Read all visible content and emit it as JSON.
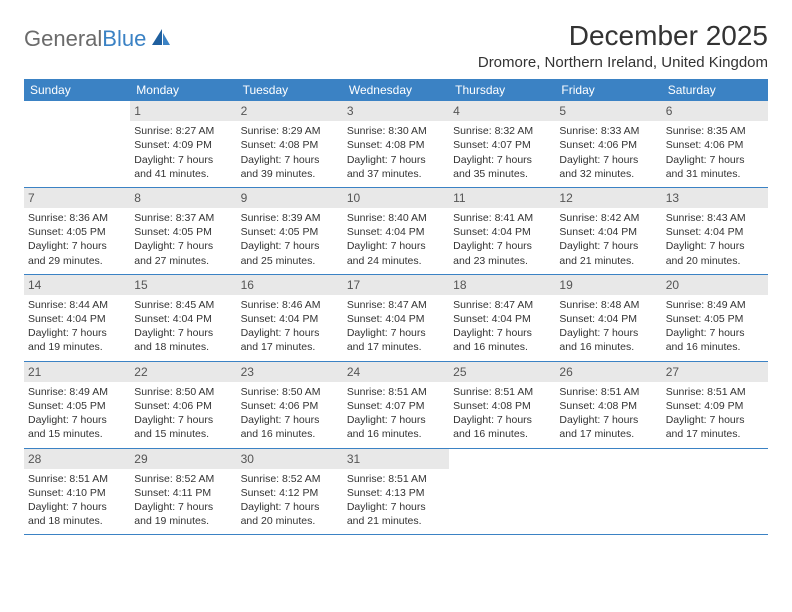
{
  "brand": {
    "part1": "General",
    "part2": "Blue"
  },
  "title": "December 2025",
  "location": "Dromore, Northern Ireland, United Kingdom",
  "day_headers": [
    "Sunday",
    "Monday",
    "Tuesday",
    "Wednesday",
    "Thursday",
    "Friday",
    "Saturday"
  ],
  "colors": {
    "header_bg": "#3b82c4",
    "header_text": "#ffffff",
    "daynum_bg": "#e8e8e8",
    "body_text": "#333333",
    "rule": "#3b82c4"
  },
  "typography": {
    "title_fontsize": 28,
    "location_fontsize": 15,
    "dayheader_fontsize": 12,
    "cell_fontsize": 10.5
  },
  "weeks": [
    [
      {
        "n": "",
        "sunrise": "",
        "sunset": "",
        "daylight": ""
      },
      {
        "n": "1",
        "sunrise": "Sunrise: 8:27 AM",
        "sunset": "Sunset: 4:09 PM",
        "daylight": "Daylight: 7 hours and 41 minutes."
      },
      {
        "n": "2",
        "sunrise": "Sunrise: 8:29 AM",
        "sunset": "Sunset: 4:08 PM",
        "daylight": "Daylight: 7 hours and 39 minutes."
      },
      {
        "n": "3",
        "sunrise": "Sunrise: 8:30 AM",
        "sunset": "Sunset: 4:08 PM",
        "daylight": "Daylight: 7 hours and 37 minutes."
      },
      {
        "n": "4",
        "sunrise": "Sunrise: 8:32 AM",
        "sunset": "Sunset: 4:07 PM",
        "daylight": "Daylight: 7 hours and 35 minutes."
      },
      {
        "n": "5",
        "sunrise": "Sunrise: 8:33 AM",
        "sunset": "Sunset: 4:06 PM",
        "daylight": "Daylight: 7 hours and 32 minutes."
      },
      {
        "n": "6",
        "sunrise": "Sunrise: 8:35 AM",
        "sunset": "Sunset: 4:06 PM",
        "daylight": "Daylight: 7 hours and 31 minutes."
      }
    ],
    [
      {
        "n": "7",
        "sunrise": "Sunrise: 8:36 AM",
        "sunset": "Sunset: 4:05 PM",
        "daylight": "Daylight: 7 hours and 29 minutes."
      },
      {
        "n": "8",
        "sunrise": "Sunrise: 8:37 AM",
        "sunset": "Sunset: 4:05 PM",
        "daylight": "Daylight: 7 hours and 27 minutes."
      },
      {
        "n": "9",
        "sunrise": "Sunrise: 8:39 AM",
        "sunset": "Sunset: 4:05 PM",
        "daylight": "Daylight: 7 hours and 25 minutes."
      },
      {
        "n": "10",
        "sunrise": "Sunrise: 8:40 AM",
        "sunset": "Sunset: 4:04 PM",
        "daylight": "Daylight: 7 hours and 24 minutes."
      },
      {
        "n": "11",
        "sunrise": "Sunrise: 8:41 AM",
        "sunset": "Sunset: 4:04 PM",
        "daylight": "Daylight: 7 hours and 23 minutes."
      },
      {
        "n": "12",
        "sunrise": "Sunrise: 8:42 AM",
        "sunset": "Sunset: 4:04 PM",
        "daylight": "Daylight: 7 hours and 21 minutes."
      },
      {
        "n": "13",
        "sunrise": "Sunrise: 8:43 AM",
        "sunset": "Sunset: 4:04 PM",
        "daylight": "Daylight: 7 hours and 20 minutes."
      }
    ],
    [
      {
        "n": "14",
        "sunrise": "Sunrise: 8:44 AM",
        "sunset": "Sunset: 4:04 PM",
        "daylight": "Daylight: 7 hours and 19 minutes."
      },
      {
        "n": "15",
        "sunrise": "Sunrise: 8:45 AM",
        "sunset": "Sunset: 4:04 PM",
        "daylight": "Daylight: 7 hours and 18 minutes."
      },
      {
        "n": "16",
        "sunrise": "Sunrise: 8:46 AM",
        "sunset": "Sunset: 4:04 PM",
        "daylight": "Daylight: 7 hours and 17 minutes."
      },
      {
        "n": "17",
        "sunrise": "Sunrise: 8:47 AM",
        "sunset": "Sunset: 4:04 PM",
        "daylight": "Daylight: 7 hours and 17 minutes."
      },
      {
        "n": "18",
        "sunrise": "Sunrise: 8:47 AM",
        "sunset": "Sunset: 4:04 PM",
        "daylight": "Daylight: 7 hours and 16 minutes."
      },
      {
        "n": "19",
        "sunrise": "Sunrise: 8:48 AM",
        "sunset": "Sunset: 4:04 PM",
        "daylight": "Daylight: 7 hours and 16 minutes."
      },
      {
        "n": "20",
        "sunrise": "Sunrise: 8:49 AM",
        "sunset": "Sunset: 4:05 PM",
        "daylight": "Daylight: 7 hours and 16 minutes."
      }
    ],
    [
      {
        "n": "21",
        "sunrise": "Sunrise: 8:49 AM",
        "sunset": "Sunset: 4:05 PM",
        "daylight": "Daylight: 7 hours and 15 minutes."
      },
      {
        "n": "22",
        "sunrise": "Sunrise: 8:50 AM",
        "sunset": "Sunset: 4:06 PM",
        "daylight": "Daylight: 7 hours and 15 minutes."
      },
      {
        "n": "23",
        "sunrise": "Sunrise: 8:50 AM",
        "sunset": "Sunset: 4:06 PM",
        "daylight": "Daylight: 7 hours and 16 minutes."
      },
      {
        "n": "24",
        "sunrise": "Sunrise: 8:51 AM",
        "sunset": "Sunset: 4:07 PM",
        "daylight": "Daylight: 7 hours and 16 minutes."
      },
      {
        "n": "25",
        "sunrise": "Sunrise: 8:51 AM",
        "sunset": "Sunset: 4:08 PM",
        "daylight": "Daylight: 7 hours and 16 minutes."
      },
      {
        "n": "26",
        "sunrise": "Sunrise: 8:51 AM",
        "sunset": "Sunset: 4:08 PM",
        "daylight": "Daylight: 7 hours and 17 minutes."
      },
      {
        "n": "27",
        "sunrise": "Sunrise: 8:51 AM",
        "sunset": "Sunset: 4:09 PM",
        "daylight": "Daylight: 7 hours and 17 minutes."
      }
    ],
    [
      {
        "n": "28",
        "sunrise": "Sunrise: 8:51 AM",
        "sunset": "Sunset: 4:10 PM",
        "daylight": "Daylight: 7 hours and 18 minutes."
      },
      {
        "n": "29",
        "sunrise": "Sunrise: 8:52 AM",
        "sunset": "Sunset: 4:11 PM",
        "daylight": "Daylight: 7 hours and 19 minutes."
      },
      {
        "n": "30",
        "sunrise": "Sunrise: 8:52 AM",
        "sunset": "Sunset: 4:12 PM",
        "daylight": "Daylight: 7 hours and 20 minutes."
      },
      {
        "n": "31",
        "sunrise": "Sunrise: 8:51 AM",
        "sunset": "Sunset: 4:13 PM",
        "daylight": "Daylight: 7 hours and 21 minutes."
      },
      {
        "n": "",
        "sunrise": "",
        "sunset": "",
        "daylight": ""
      },
      {
        "n": "",
        "sunrise": "",
        "sunset": "",
        "daylight": ""
      },
      {
        "n": "",
        "sunrise": "",
        "sunset": "",
        "daylight": ""
      }
    ]
  ]
}
